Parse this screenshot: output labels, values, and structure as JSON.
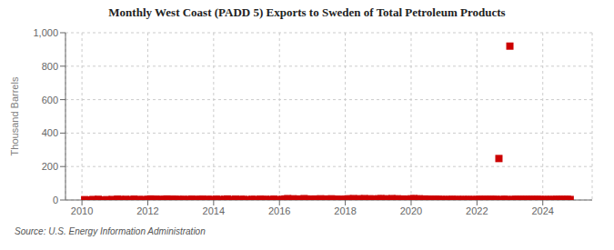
{
  "chart_data": {
    "type": "scatter",
    "title": "Monthly West Coast (PADD 5) Exports to Sweden of Total Petroleum Products",
    "ylabel": "Thousand Barrels",
    "annotations": [
      "Source: U.S. Energy Information Administration"
    ],
    "color": "#cc0000",
    "marker": "square",
    "grid": true,
    "xlim": [
      2009.5,
      2025.5
    ],
    "ylim": [
      0,
      1000
    ],
    "xticks": [
      2010,
      2012,
      2014,
      2016,
      2018,
      2020,
      2022,
      2024
    ],
    "yticks": [
      0,
      200,
      400,
      600,
      800,
      {
        "value": 1000,
        "label": "1,000"
      }
    ],
    "x": [
      2010.083,
      2010.167,
      2010.25,
      2010.333,
      2010.417,
      2010.5,
      2010.583,
      2010.667,
      2010.75,
      2010.833,
      2010.917,
      2011.0,
      2011.083,
      2011.167,
      2011.25,
      2011.333,
      2011.417,
      2011.5,
      2011.583,
      2011.667,
      2011.75,
      2011.833,
      2011.917,
      2012.0,
      2012.083,
      2012.167,
      2012.25,
      2012.333,
      2012.417,
      2012.5,
      2012.583,
      2012.667,
      2012.75,
      2012.833,
      2012.917,
      2013.0,
      2013.083,
      2013.167,
      2013.25,
      2013.333,
      2013.417,
      2013.5,
      2013.583,
      2013.667,
      2013.75,
      2013.833,
      2013.917,
      2014.0,
      2014.083,
      2014.167,
      2014.25,
      2014.333,
      2014.417,
      2014.5,
      2014.583,
      2014.667,
      2014.75,
      2014.833,
      2014.917,
      2015.0,
      2015.083,
      2015.167,
      2015.25,
      2015.333,
      2015.417,
      2015.5,
      2015.583,
      2015.667,
      2015.75,
      2015.833,
      2015.917,
      2016.0,
      2016.083,
      2016.167,
      2016.25,
      2016.333,
      2016.417,
      2016.5,
      2016.583,
      2016.667,
      2016.75,
      2016.833,
      2016.917,
      2017.0,
      2017.083,
      2017.167,
      2017.25,
      2017.333,
      2017.417,
      2017.5,
      2017.583,
      2017.667,
      2017.75,
      2017.833,
      2017.917,
      2018.0,
      2018.083,
      2018.167,
      2018.25,
      2018.333,
      2018.417,
      2018.5,
      2018.583,
      2018.667,
      2018.75,
      2018.833,
      2018.917,
      2019.0,
      2019.083,
      2019.167,
      2019.25,
      2019.333,
      2019.417,
      2019.5,
      2019.583,
      2019.667,
      2019.75,
      2019.833,
      2019.917,
      2020.0,
      2020.083,
      2020.167,
      2020.25,
      2020.333,
      2020.417,
      2020.5,
      2020.583,
      2020.667,
      2020.75,
      2020.833,
      2020.917,
      2021.0,
      2021.083,
      2021.167,
      2021.25,
      2021.333,
      2021.417,
      2021.5,
      2021.583,
      2021.667,
      2021.75,
      2021.833,
      2021.917,
      2022.0,
      2022.083,
      2022.167,
      2022.25,
      2022.333,
      2022.417,
      2022.5,
      2022.583,
      2022.667,
      2022.75,
      2022.833,
      2022.917,
      2023.0,
      2023.083,
      2023.167,
      2023.25,
      2023.333,
      2023.417,
      2023.5,
      2023.583,
      2023.667,
      2023.75,
      2023.833,
      2023.917,
      2024.0,
      2024.083,
      2024.167,
      2024.25,
      2024.333,
      2024.417,
      2024.5,
      2024.583,
      2024.667,
      2024.75,
      2024.833
    ],
    "values": [
      2,
      0,
      0,
      3,
      0,
      4,
      0,
      0,
      2,
      0,
      3,
      0,
      5,
      3,
      0,
      4,
      0,
      2,
      5,
      0,
      3,
      2,
      0,
      4,
      6,
      3,
      5,
      0,
      4,
      3,
      6,
      2,
      5,
      4,
      3,
      2,
      4,
      0,
      3,
      5,
      0,
      4,
      3,
      5,
      0,
      4,
      3,
      0,
      5,
      3,
      0,
      4,
      6,
      0,
      3,
      5,
      0,
      4,
      3,
      2,
      0,
      4,
      3,
      0,
      5,
      2,
      4,
      0,
      3,
      5,
      2,
      0,
      4,
      6,
      8,
      5,
      7,
      4,
      6,
      5,
      8,
      6,
      5,
      4,
      6,
      5,
      7,
      4,
      6,
      5,
      7,
      4,
      5,
      4,
      3,
      5,
      7,
      6,
      8,
      5,
      7,
      6,
      8,
      5,
      7,
      6,
      5,
      7,
      8,
      6,
      7,
      5,
      8,
      6,
      7,
      5,
      6,
      5,
      4,
      7,
      8,
      6,
      7,
      5,
      6,
      4,
      5,
      4,
      5,
      4,
      3,
      2,
      3,
      2,
      4,
      2,
      3,
      2,
      3,
      2,
      3,
      2,
      2,
      3,
      4,
      3,
      4,
      3,
      4,
      3,
      4,
      248,
      3,
      4,
      3,
      920,
      3,
      4,
      3,
      4,
      3,
      4,
      3,
      4,
      3,
      4,
      3,
      2,
      3,
      2,
      3,
      2,
      4,
      3,
      4,
      3,
      4,
      3
    ]
  }
}
